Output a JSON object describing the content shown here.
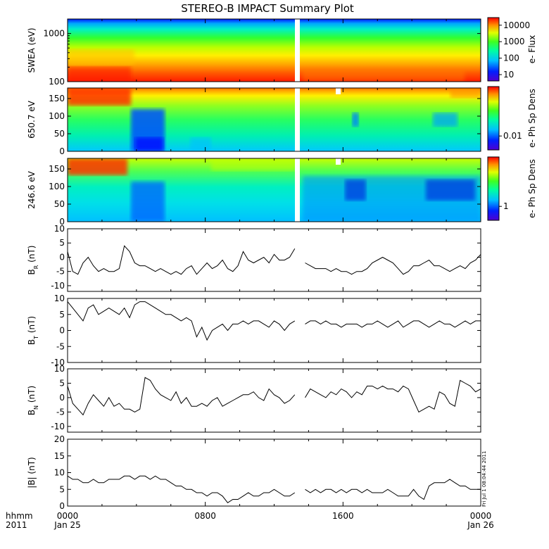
{
  "title": "STEREO-B IMPACT Summary Plot",
  "stamp": "Fri Jul 1 08:04:44 2011",
  "time_axis": {
    "row1": [
      "0000",
      "0800",
      "1600",
      "0000"
    ],
    "row2": [
      "Jan 25",
      "",
      "",
      "Jan 26"
    ],
    "left_row1": "hhmm",
    "left_row2": "2011",
    "range_hours": [
      0,
      24
    ]
  },
  "chart_data": [
    {
      "type": "heatmap",
      "panel": "swea",
      "ylabel": "SWEA (eV)",
      "ylog": true,
      "ylim": [
        100,
        2000
      ],
      "yticks": [
        "1000",
        "100"
      ],
      "cbar_label": "e- Flux",
      "cbar_log": true,
      "cbar_ticks": [
        "10000",
        "1000",
        "100",
        "10"
      ],
      "data_gap_hours": [
        13.2,
        13.5
      ]
    },
    {
      "type": "heatmap",
      "panel": "pad650",
      "ylabel": "650.7 eV",
      "ylim": [
        0,
        180
      ],
      "yticks": [
        "150",
        "100",
        "50",
        "0"
      ],
      "cbar_label": "e- Ph Sp Dens",
      "cbar_ticks": [
        "0.01"
      ],
      "data_gap_hours": [
        13.2,
        13.5
      ]
    },
    {
      "type": "heatmap",
      "panel": "pad246",
      "ylabel": "246.6 eV",
      "ylim": [
        0,
        180
      ],
      "yticks": [
        "150",
        "100",
        "50",
        "0"
      ],
      "cbar_label": "e- Ph Sp Dens",
      "cbar_ticks": [
        "1"
      ],
      "data_gap_hours": [
        13.2,
        13.5
      ]
    },
    {
      "type": "line",
      "panel": "br",
      "ylabel": "B",
      "ysub": "R",
      "yunit": " (nT)",
      "ylim": [
        -12,
        10
      ],
      "yticks": [
        "10",
        "5",
        "0",
        "-5",
        "-10"
      ],
      "x": [
        0,
        0.3,
        0.6,
        0.9,
        1.2,
        1.5,
        1.8,
        2.1,
        2.4,
        2.7,
        3.0,
        3.3,
        3.6,
        3.9,
        4.2,
        4.5,
        4.8,
        5.1,
        5.4,
        5.7,
        6.0,
        6.3,
        6.6,
        6.9,
        7.2,
        7.5,
        7.8,
        8.1,
        8.4,
        8.7,
        9.0,
        9.3,
        9.6,
        9.9,
        10.2,
        10.5,
        10.8,
        11.1,
        11.4,
        11.7,
        12.0,
        12.3,
        12.6,
        12.9,
        13.2,
        13.5,
        13.8,
        14.1,
        14.4,
        14.7,
        15.0,
        15.3,
        15.6,
        15.9,
        16.2,
        16.5,
        16.8,
        17.1,
        17.4,
        17.7,
        18.0,
        18.3,
        18.6,
        18.9,
        19.2,
        19.5,
        19.8,
        20.1,
        20.4,
        20.7,
        21.0,
        21.3,
        21.6,
        21.9,
        22.2,
        22.5,
        22.8,
        23.1,
        23.4,
        23.7,
        24.0
      ],
      "values": [
        2,
        -5,
        -6,
        -2,
        0,
        -3,
        -5,
        -4,
        -5,
        -5,
        -4,
        4,
        2,
        -2,
        -3,
        -3,
        -4,
        -5,
        -4,
        -5,
        -6,
        -5,
        -6,
        -4,
        -3,
        -6,
        -4,
        -2,
        -4,
        -3,
        -1,
        -4,
        -5,
        -3,
        2,
        -1,
        -2,
        -1,
        0,
        -2,
        1,
        -1,
        -1,
        0,
        3,
        null,
        -2,
        -3,
        -4,
        -4,
        -4,
        -5,
        -4,
        -5,
        -5,
        -6,
        -5,
        -5,
        -4,
        -2,
        -1,
        0,
        -1,
        -2,
        -4,
        -6,
        -5,
        -3,
        -3,
        -2,
        -1,
        -3,
        -3,
        -4,
        -5,
        -4,
        -3,
        -4,
        -2,
        -1,
        1
      ]
    },
    {
      "type": "line",
      "panel": "bt",
      "ylabel": "B",
      "ysub": "T",
      "yunit": " (nT)",
      "ylim": [
        -10,
        10
      ],
      "yticks": [
        "10",
        "5",
        "0",
        "-5",
        "-10"
      ],
      "x": [
        0,
        0.3,
        0.6,
        0.9,
        1.2,
        1.5,
        1.8,
        2.1,
        2.4,
        2.7,
        3.0,
        3.3,
        3.6,
        3.9,
        4.2,
        4.5,
        4.8,
        5.1,
        5.4,
        5.7,
        6.0,
        6.3,
        6.6,
        6.9,
        7.2,
        7.5,
        7.8,
        8.1,
        8.4,
        8.7,
        9.0,
        9.3,
        9.6,
        9.9,
        10.2,
        10.5,
        10.8,
        11.1,
        11.4,
        11.7,
        12.0,
        12.3,
        12.6,
        12.9,
        13.2,
        13.5,
        13.8,
        14.1,
        14.4,
        14.7,
        15.0,
        15.3,
        15.6,
        15.9,
        16.2,
        16.5,
        16.8,
        17.1,
        17.4,
        17.7,
        18.0,
        18.3,
        18.6,
        18.9,
        19.2,
        19.5,
        19.8,
        20.1,
        20.4,
        20.7,
        21.0,
        21.3,
        21.6,
        21.9,
        22.2,
        22.5,
        22.8,
        23.1,
        23.4,
        23.7,
        24.0
      ],
      "values": [
        9,
        7,
        5,
        3,
        7,
        8,
        5,
        6,
        7,
        6,
        5,
        7,
        4,
        8,
        9,
        9,
        8,
        7,
        6,
        5,
        5,
        4,
        3,
        4,
        3,
        -2,
        1,
        -3,
        0,
        1,
        2,
        0,
        2,
        2,
        3,
        2,
        3,
        3,
        2,
        1,
        3,
        2,
        0,
        2,
        3,
        null,
        2,
        3,
        3,
        2,
        3,
        2,
        2,
        1,
        2,
        2,
        2,
        1,
        2,
        2,
        3,
        2,
        1,
        2,
        3,
        1,
        2,
        3,
        3,
        2,
        1,
        2,
        3,
        2,
        2,
        1,
        2,
        3,
        2,
        3,
        3
      ]
    },
    {
      "type": "line",
      "panel": "bn",
      "ylabel": "B",
      "ysub": "N",
      "yunit": " (nT)",
      "ylim": [
        -12,
        10
      ],
      "yticks": [
        "10",
        "5",
        "0",
        "-5",
        "-10"
      ],
      "x": [
        0,
        0.3,
        0.6,
        0.9,
        1.2,
        1.5,
        1.8,
        2.1,
        2.4,
        2.7,
        3.0,
        3.3,
        3.6,
        3.9,
        4.2,
        4.5,
        4.8,
        5.1,
        5.4,
        5.7,
        6.0,
        6.3,
        6.6,
        6.9,
        7.2,
        7.5,
        7.8,
        8.1,
        8.4,
        8.7,
        9.0,
        9.3,
        9.6,
        9.9,
        10.2,
        10.5,
        10.8,
        11.1,
        11.4,
        11.7,
        12.0,
        12.3,
        12.6,
        12.9,
        13.2,
        13.5,
        13.8,
        14.1,
        14.4,
        14.7,
        15.0,
        15.3,
        15.6,
        15.9,
        16.2,
        16.5,
        16.8,
        17.1,
        17.4,
        17.7,
        18.0,
        18.3,
        18.6,
        18.9,
        19.2,
        19.5,
        19.8,
        20.1,
        20.4,
        20.7,
        21.0,
        21.3,
        21.6,
        21.9,
        22.2,
        22.5,
        22.8,
        23.1,
        23.4,
        23.7,
        24.0
      ],
      "values": [
        4,
        -2,
        -4,
        -6,
        -2,
        1,
        -1,
        -3,
        0,
        -3,
        -2,
        -4,
        -4,
        -5,
        -4,
        7,
        6,
        3,
        1,
        0,
        -1,
        2,
        -2,
        0,
        -3,
        -3,
        -2,
        -3,
        -1,
        0,
        -3,
        -2,
        -1,
        0,
        1,
        1,
        2,
        0,
        -1,
        3,
        1,
        0,
        -2,
        -1,
        1,
        null,
        0,
        3,
        2,
        1,
        0,
        2,
        1,
        3,
        2,
        0,
        2,
        1,
        4,
        4,
        3,
        4,
        3,
        3,
        2,
        4,
        3,
        -1,
        -5,
        -4,
        -3,
        -4,
        2,
        1,
        -2,
        -3,
        6,
        5,
        4,
        2,
        3
      ]
    },
    {
      "type": "line",
      "panel": "bmag",
      "ylabel": "|B| (nT)",
      "ylim": [
        0,
        20
      ],
      "yticks": [
        "20",
        "15",
        "10",
        "5",
        "0"
      ],
      "x": [
        0,
        0.3,
        0.6,
        0.9,
        1.2,
        1.5,
        1.8,
        2.1,
        2.4,
        2.7,
        3.0,
        3.3,
        3.6,
        3.9,
        4.2,
        4.5,
        4.8,
        5.1,
        5.4,
        5.7,
        6.0,
        6.3,
        6.6,
        6.9,
        7.2,
        7.5,
        7.8,
        8.1,
        8.4,
        8.7,
        9.0,
        9.3,
        9.6,
        9.9,
        10.2,
        10.5,
        10.8,
        11.1,
        11.4,
        11.7,
        12.0,
        12.3,
        12.6,
        12.9,
        13.2,
        13.5,
        13.8,
        14.1,
        14.4,
        14.7,
        15.0,
        15.3,
        15.6,
        15.9,
        16.2,
        16.5,
        16.8,
        17.1,
        17.4,
        17.7,
        18.0,
        18.3,
        18.6,
        18.9,
        19.2,
        19.5,
        19.8,
        20.1,
        20.4,
        20.7,
        21.0,
        21.3,
        21.6,
        21.9,
        22.2,
        22.5,
        22.8,
        23.1,
        23.4,
        23.7,
        24.0
      ],
      "values": [
        9,
        8,
        8,
        7,
        7,
        8,
        7,
        7,
        8,
        8,
        8,
        9,
        9,
        8,
        9,
        9,
        8,
        9,
        8,
        8,
        7,
        6,
        6,
        5,
        5,
        4,
        4,
        3,
        4,
        4,
        3,
        1,
        2,
        2,
        3,
        4,
        3,
        3,
        4,
        4,
        5,
        4,
        3,
        3,
        4,
        null,
        5,
        4,
        5,
        4,
        5,
        5,
        4,
        5,
        4,
        5,
        5,
        4,
        5,
        4,
        4,
        4,
        5,
        4,
        3,
        3,
        3,
        5,
        3,
        2,
        6,
        7,
        7,
        7,
        8,
        7,
        6,
        6,
        5,
        5,
        5
      ]
    }
  ]
}
